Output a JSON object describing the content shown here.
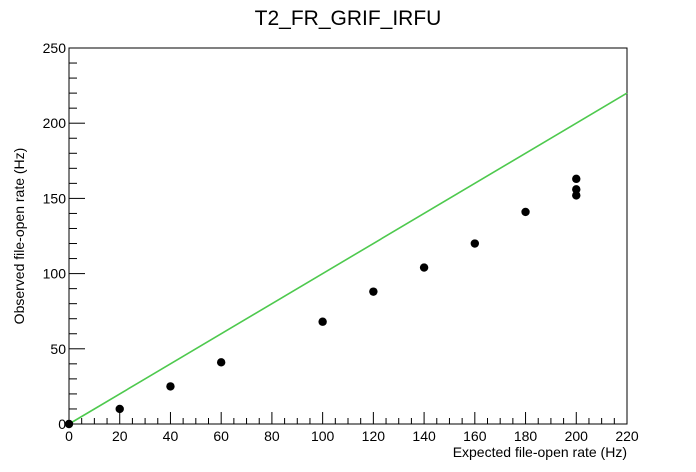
{
  "chart_data": {
    "type": "scatter",
    "title": "T2_FR_GRIF_IRFU",
    "xlabel": "Expected file-open rate (Hz)",
    "ylabel": "Observed file-open rate (Hz)",
    "xlim": [
      0,
      220
    ],
    "ylim": [
      0,
      250
    ],
    "x_ticks": [
      0,
      20,
      40,
      60,
      80,
      100,
      120,
      140,
      160,
      180,
      200,
      220
    ],
    "y_ticks": [
      0,
      50,
      100,
      150,
      200,
      250
    ],
    "grid": false,
    "legend": "none",
    "series": [
      {
        "marker": "circle",
        "color": "#000000",
        "points": [
          {
            "x": 0,
            "y": 0
          },
          {
            "x": 20,
            "y": 10
          },
          {
            "x": 40,
            "y": 25
          },
          {
            "x": 60,
            "y": 41
          },
          {
            "x": 100,
            "y": 68
          },
          {
            "x": 120,
            "y": 88
          },
          {
            "x": 140,
            "y": 104
          },
          {
            "x": 160,
            "y": 120
          },
          {
            "x": 180,
            "y": 141
          },
          {
            "x": 200,
            "y": 152
          },
          {
            "x": 200,
            "y": 156
          },
          {
            "x": 200,
            "y": 163
          }
        ]
      }
    ],
    "reference_line": {
      "color": "#4ec94e",
      "points": [
        {
          "x": 0,
          "y": 0
        },
        {
          "x": 220,
          "y": 220
        }
      ]
    }
  }
}
